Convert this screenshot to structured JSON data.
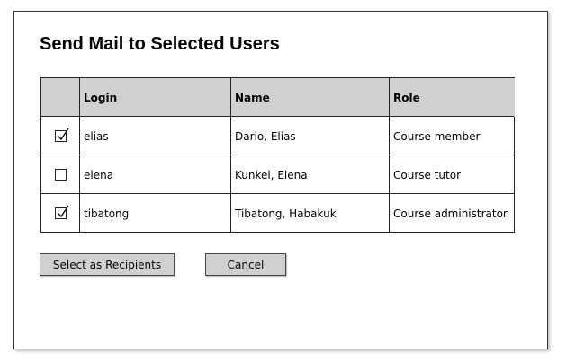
{
  "header": {
    "title": "Send Mail to Selected Users"
  },
  "table": {
    "columns": [
      "Login",
      "Name",
      "Role"
    ],
    "rows": [
      {
        "selected": true,
        "cells": [
          "elias",
          "Dario, Elias",
          "Course member"
        ]
      },
      {
        "selected": false,
        "cells": [
          "elena",
          "Kunkel, Elena",
          "Course tutor"
        ]
      },
      {
        "selected": true,
        "cells": [
          "tibatong",
          "Tibatong, Habakuk",
          "Course administrator"
        ]
      }
    ]
  },
  "buttons": [
    "Select as Recipients",
    "Cancel"
  ]
}
